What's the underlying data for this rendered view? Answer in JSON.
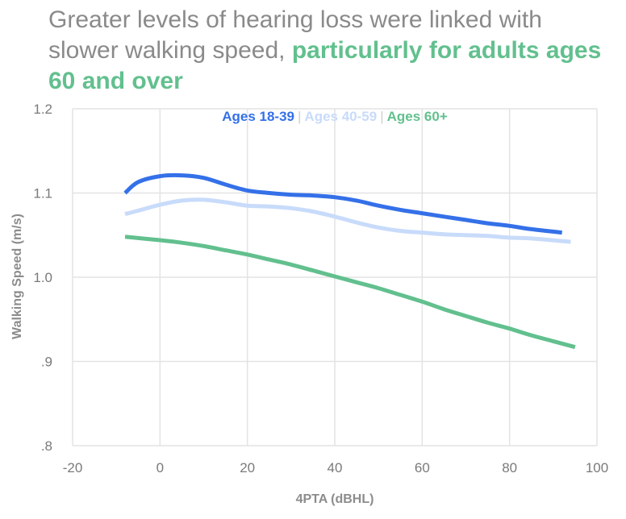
{
  "title": {
    "plain": "Greater levels of hearing loss were linked with slower walking speed, ",
    "highlight": "particularly for adults ages 60 and over"
  },
  "colors": {
    "title_text": "#8a8a8a",
    "highlight": "#62c08e",
    "grid": "#e3e3e3",
    "tick": "#7a7a7a"
  },
  "chart_data": {
    "type": "line",
    "xlabel": "4PTA (dBHL)",
    "ylabel": "Walking Speed (m/s)",
    "xlim": [
      -20,
      100
    ],
    "ylim": [
      0.8,
      1.2
    ],
    "x_ticks": [
      -20,
      0,
      20,
      40,
      60,
      80,
      100
    ],
    "x_tick_labels": [
      "-20",
      "0",
      "20",
      "40",
      "60",
      "80",
      "100"
    ],
    "y_ticks": [
      0.8,
      0.9,
      1.0,
      1.1,
      1.2
    ],
    "y_tick_labels": [
      ".8",
      ".9",
      "1.0",
      "1.1",
      "1.2"
    ],
    "grid": true,
    "legend_position": "top-center",
    "series": [
      {
        "name": "Ages 18-39",
        "color": "#3470e8",
        "x": [
          -8,
          -5,
          0,
          5,
          10,
          15,
          20,
          25,
          30,
          35,
          40,
          45,
          50,
          55,
          60,
          65,
          70,
          75,
          80,
          85,
          92
        ],
        "y": [
          1.1,
          1.113,
          1.12,
          1.121,
          1.118,
          1.11,
          1.103,
          1.1,
          1.098,
          1.097,
          1.095,
          1.091,
          1.085,
          1.08,
          1.076,
          1.072,
          1.068,
          1.064,
          1.061,
          1.057,
          1.053
        ]
      },
      {
        "name": "Ages 40-59",
        "color": "#c8dbfa",
        "x": [
          -8,
          -5,
          0,
          5,
          10,
          15,
          20,
          25,
          30,
          35,
          40,
          45,
          50,
          55,
          60,
          65,
          70,
          75,
          80,
          85,
          94
        ],
        "y": [
          1.075,
          1.079,
          1.086,
          1.091,
          1.092,
          1.089,
          1.085,
          1.084,
          1.082,
          1.078,
          1.072,
          1.065,
          1.059,
          1.055,
          1.053,
          1.051,
          1.05,
          1.049,
          1.047,
          1.046,
          1.042
        ]
      },
      {
        "name": "Ages 60+",
        "color": "#62c08e",
        "x": [
          -8,
          0,
          5,
          10,
          15,
          20,
          25,
          30,
          35,
          40,
          45,
          50,
          55,
          60,
          65,
          70,
          75,
          80,
          85,
          90,
          95
        ],
        "y": [
          1.048,
          1.044,
          1.041,
          1.037,
          1.032,
          1.027,
          1.021,
          1.015,
          1.008,
          1.001,
          0.994,
          0.987,
          0.979,
          0.971,
          0.962,
          0.954,
          0.946,
          0.939,
          0.931,
          0.924,
          0.917
        ]
      }
    ]
  }
}
